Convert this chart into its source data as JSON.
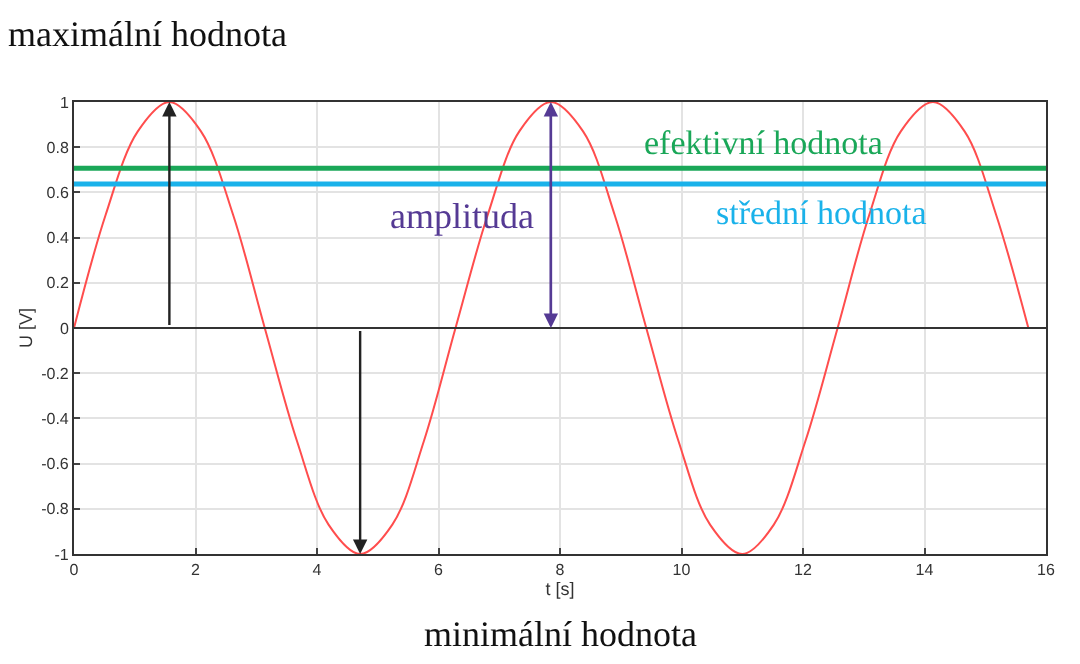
{
  "chart_data": {
    "type": "line",
    "xlabel": "t [s]",
    "ylabel": "U [V]",
    "x": [
      0,
      0.52,
      1.05,
      1.57,
      2.09,
      2.62,
      3.14,
      3.67,
      4.19,
      4.71,
      5.24,
      5.76,
      6.28,
      6.81,
      7.33,
      7.85,
      8.38,
      8.9,
      9.42,
      9.95,
      10.47,
      11,
      11.52,
      12.04,
      12.57,
      13.09,
      13.61,
      14.14,
      14.66,
      15.18,
      15.71
    ],
    "series": [
      {
        "color": "#ff4d4d",
        "values": [
          0,
          0.5,
          0.87,
          1,
          0.87,
          0.5,
          0,
          -0.5,
          -0.87,
          -1,
          -0.87,
          -0.5,
          0,
          0.5,
          0.87,
          1,
          0.87,
          0.5,
          0,
          -0.5,
          -0.87,
          -1,
          -0.87,
          -0.5,
          0,
          0.5,
          0.87,
          1,
          0.87,
          0.5,
          0
        ]
      }
    ],
    "xlim": [
      0,
      16
    ],
    "xticks": [
      0,
      2,
      4,
      6,
      8,
      10,
      12,
      14,
      16
    ],
    "ylim": [
      -1,
      1
    ],
    "yticks": [
      -1,
      -0.8,
      -0.6,
      -0.4,
      -0.2,
      0,
      0.2,
      0.4,
      0.6,
      0.8,
      1
    ],
    "ref_lines": [
      {
        "axis": "y",
        "value": 0.707,
        "label": "efektivní hodnota",
        "color": "#1aa758"
      },
      {
        "axis": "y",
        "value": 0.637,
        "label": "střední hodnota",
        "color": "#1ab2ea"
      },
      {
        "axis": "y",
        "value": 0,
        "color": "#333333"
      }
    ],
    "annotations": [
      {
        "text": "maximální hodnota",
        "x": 1.57,
        "y": 1
      },
      {
        "text": "minimální hodnota",
        "x": 4.71,
        "y": -1
      },
      {
        "text": "amplituda",
        "x": 7.85,
        "y": 1
      }
    ],
    "grid": true,
    "marker": "none",
    "line_style": "solid"
  }
}
